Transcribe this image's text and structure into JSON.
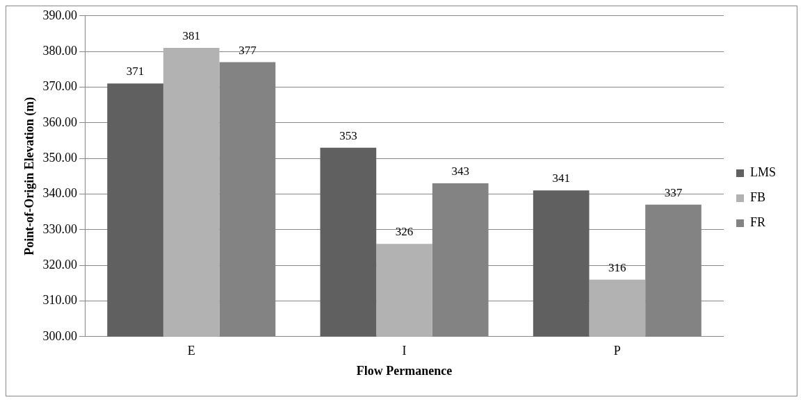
{
  "chart_data": {
    "type": "bar",
    "xlabel": "Flow Permanence",
    "ylabel": "Point-of-Origin Elevation (m)",
    "categories": [
      "E",
      "I",
      "P"
    ],
    "series": [
      {
        "name": "LMS",
        "color": "#606060",
        "values": [
          371,
          353,
          341
        ]
      },
      {
        "name": "FB",
        "color": "#b2b2b2",
        "values": [
          381,
          326,
          316
        ]
      },
      {
        "name": "FR",
        "color": "#838383",
        "values": [
          377,
          343,
          337
        ]
      }
    ],
    "ylim": [
      300,
      390
    ],
    "yticks": [
      {
        "value": 300,
        "label": "300.00"
      },
      {
        "value": 310,
        "label": "310.00"
      },
      {
        "value": 320,
        "label": "320.00"
      },
      {
        "value": 330,
        "label": "330.00"
      },
      {
        "value": 340,
        "label": "340.00"
      },
      {
        "value": 350,
        "label": "350.00"
      },
      {
        "value": 360,
        "label": "360.00"
      },
      {
        "value": 370,
        "label": "370.00"
      },
      {
        "value": 380,
        "label": "380.00"
      },
      {
        "value": 390,
        "label": "390.00"
      }
    ],
    "grid": "y",
    "legend": "right",
    "data_labels": true
  }
}
